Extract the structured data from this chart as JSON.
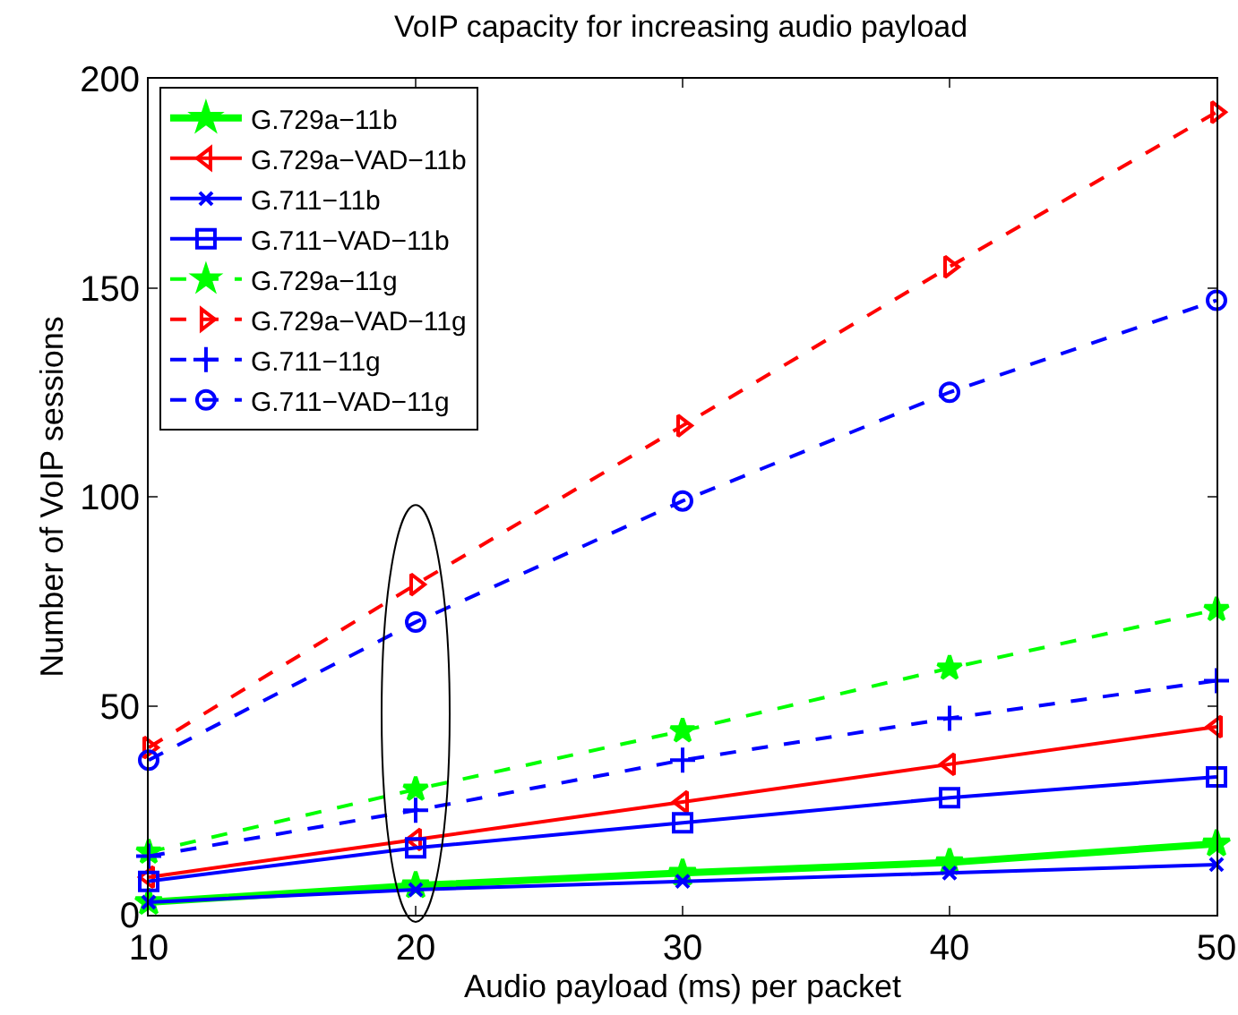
{
  "chart_data": {
    "type": "line",
    "title": "VoIP capacity for increasing audio payload",
    "xlabel": "Audio payload (ms) per packet",
    "ylabel": "Number of VoIP sessions",
    "x": [
      10,
      20,
      30,
      40,
      50
    ],
    "xlim": [
      10,
      50
    ],
    "xticks": [
      10,
      20,
      30,
      40,
      50
    ],
    "ylim": [
      0,
      200
    ],
    "yticks": [
      0,
      50,
      100,
      150,
      200
    ],
    "grid": false,
    "legend": "top left",
    "series": [
      {
        "name": "G.729a−11b",
        "color": "#00ff00",
        "marker": "star",
        "line_style": "solid",
        "values": [
          3,
          7,
          10,
          12.5,
          17
        ]
      },
      {
        "name": "G.729a−VAD−11b",
        "color": "#ff0000",
        "marker": "triangle",
        "line_style": "solid",
        "values": [
          9,
          18,
          27,
          36,
          45
        ]
      },
      {
        "name": "G.711−11b",
        "color": "#0000ff",
        "marker": "cross",
        "line_style": "solid",
        "values": [
          3,
          6,
          8,
          10,
          12
        ]
      },
      {
        "name": "G.711−VAD−11b",
        "color": "#0000ff",
        "marker": "square",
        "line_style": "solid",
        "values": [
          8,
          16,
          22,
          28,
          33
        ]
      },
      {
        "name": "G.729a−11g",
        "color": "#00ff00",
        "marker": "star",
        "line_style": "dashed",
        "values": [
          15,
          30,
          44,
          59,
          73
        ]
      },
      {
        "name": "G.729a−VAD−11g",
        "color": "#ff0000",
        "marker": "triangle",
        "line_style": "dashed",
        "values": [
          40,
          79,
          117,
          155,
          192
        ]
      },
      {
        "name": "G.711−11g",
        "color": "#0000ff",
        "marker": "cross",
        "line_style": "dashed",
        "values": [
          14,
          25,
          37,
          47,
          56
        ]
      },
      {
        "name": "G.711−VAD−11g",
        "color": "#0000ff",
        "marker": "circle",
        "line_style": "dashed",
        "values": [
          37,
          70,
          99,
          125,
          147
        ]
      }
    ]
  }
}
